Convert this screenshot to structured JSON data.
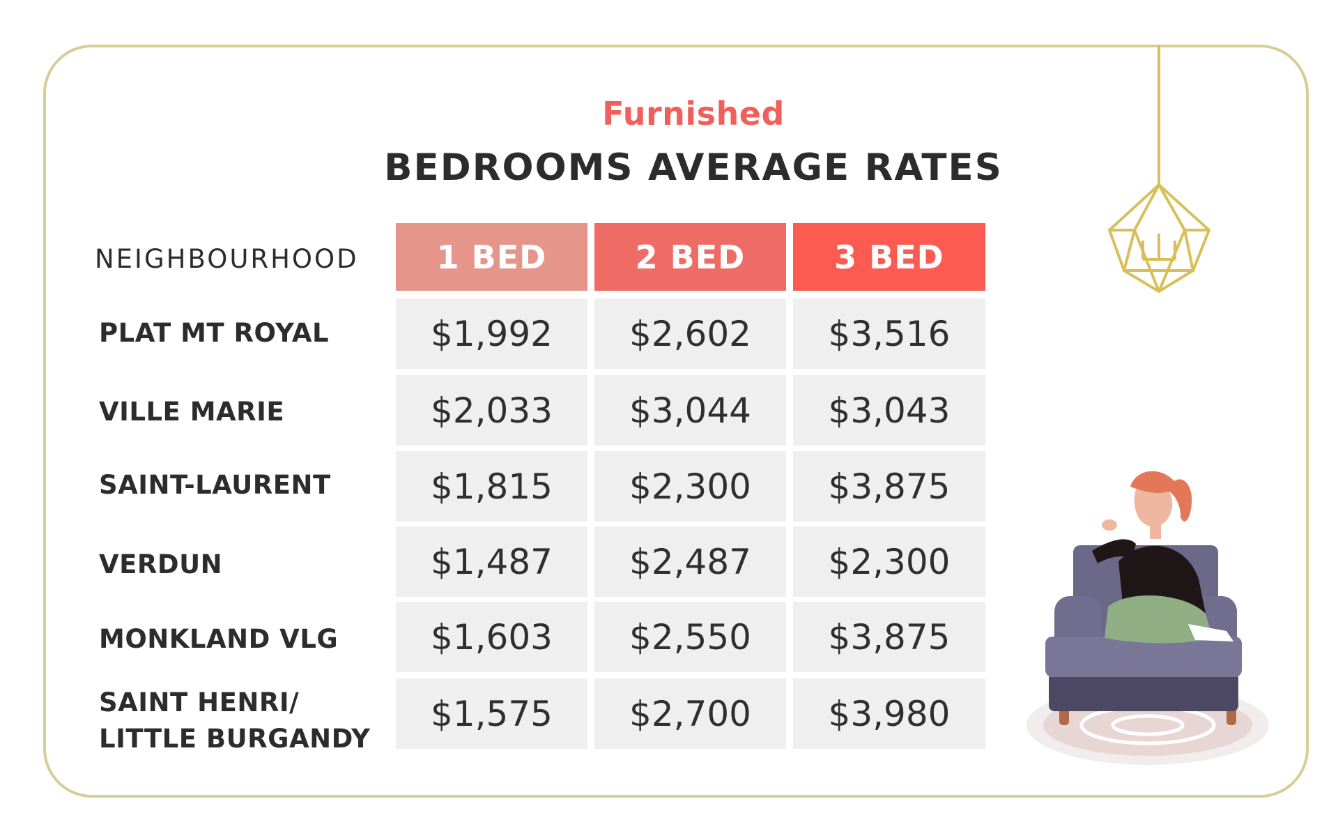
{
  "chart_data": {
    "type": "table",
    "subtitle": "Furnished",
    "title": "BEDROOMS AVERAGE RATES",
    "row_header": "NEIGHBOURHOOD",
    "columns": [
      "1 BED",
      "2 BED",
      "3 BED"
    ],
    "rows": [
      {
        "name": "PLAT MT ROYAL",
        "values": [
          "$1,992",
          "$2,602",
          "$3,516"
        ]
      },
      {
        "name": "VILLE MARIE",
        "values": [
          "$2,033",
          "$3,044",
          "$3,043"
        ]
      },
      {
        "name": "SAINT-LAURENT",
        "values": [
          "$1,815",
          "$2,300",
          "$3,875"
        ]
      },
      {
        "name": "VERDUN",
        "values": [
          "$1,487",
          "$2,487",
          "$2,300"
        ]
      },
      {
        "name": "MONKLAND VLG",
        "values": [
          "$1,603",
          "$2,550",
          "$3,875"
        ]
      },
      {
        "name": "SAINT HENRI/\nLITTLE BURGANDY",
        "values": [
          "$1,575",
          "$2,700",
          "$3,980"
        ]
      }
    ],
    "header_colors": [
      "#e5958a",
      "#ef6c66",
      "#fb5b50"
    ]
  },
  "colors": {
    "accent": "#f0605a",
    "frame": "#d8cd97",
    "cell": "#efeff0",
    "text": "#2c2c2c"
  },
  "decorations": {
    "chandelier": "gold-geometric-chandelier-illustration",
    "person": "woman-in-armchair-illustration"
  }
}
